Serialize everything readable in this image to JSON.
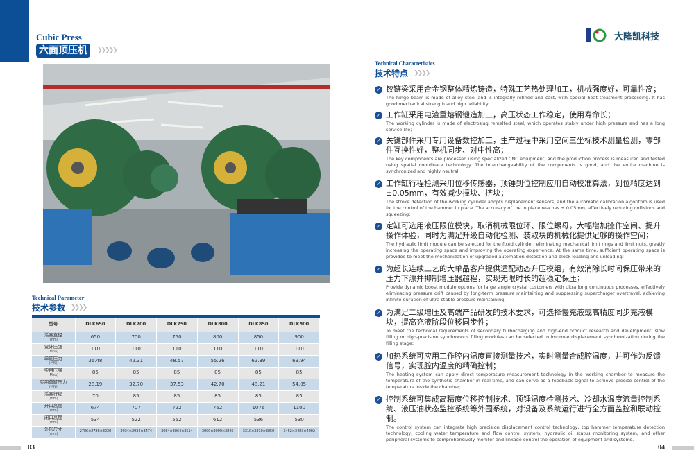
{
  "left_page": {
    "title_en": "Cubic Press",
    "title_cn": "六面顶压机",
    "param_title_en": "Technical Parameter",
    "param_title_cn": "技术参数",
    "page_number": "03",
    "table": {
      "headers": [
        "型号",
        "DLK650",
        "DLK700",
        "DLK750",
        "DLK800",
        "DLK850",
        "DLK900"
      ],
      "rows": [
        {
          "label": "活塞直径",
          "unit": "(mm)",
          "values": [
            "650",
            "700",
            "750",
            "800",
            "850",
            "900"
          ]
        },
        {
          "label": "设计压强",
          "unit": "(Mpa)",
          "values": [
            "110",
            "110",
            "110",
            "110",
            "110",
            "110"
          ]
        },
        {
          "label": "单缸压力",
          "unit": "(MN)",
          "values": [
            "36.48",
            "42.31",
            "48.57",
            "55.26",
            "62.39",
            "69.94"
          ]
        },
        {
          "label": "实用压强",
          "unit": "(Mpa)",
          "values": [
            "85",
            "85",
            "85",
            "85",
            "85",
            "85"
          ]
        },
        {
          "label": "实用单缸压力",
          "unit": "(MN)",
          "values": [
            "28.19",
            "32.70",
            "37.53",
            "42.70",
            "48.21",
            "54.05"
          ]
        },
        {
          "label": "活塞行程",
          "unit": "(mm)",
          "values": [
            "70",
            "85",
            "85",
            "85",
            "85",
            "85"
          ]
        },
        {
          "label": "开口高度",
          "unit": "(mm)",
          "values": [
            "674",
            "707",
            "722",
            "762",
            "1076",
            "1100"
          ]
        },
        {
          "label": "闭口高度",
          "unit": "(mm)",
          "values": [
            "534",
            "522",
            "552",
            "612",
            "536",
            "530"
          ]
        },
        {
          "label": "外形尺寸",
          "unit": "(mm)",
          "values": [
            "2786×2786×3230",
            "2934×2934×3474",
            "3064×3064×3514",
            "3090×3090×3846",
            "3310×3310×3850",
            "3452×3453×4002"
          ]
        }
      ]
    }
  },
  "right_page": {
    "logo_text": "大隆凯科技",
    "char_title_en": "Technical Characteristics",
    "char_title_cn": "技术特点",
    "page_number": "04",
    "items": [
      {
        "cn": "铰链梁采用合金钢整体精炼铸造，特殊工艺热处理加工，机械强度好，可靠性高；",
        "en": "The hinge beam is made of alloy steel and is integrally refined and cast, with special heat treatment processing. It has good mechanical strength and high reliability;"
      },
      {
        "cn": "工作缸采用电渣重熔钢锻造加工，高压状态工作稳定，使用寿命长；",
        "en": "The working cylinder is made of electroslag remelted steel, which operates stably under high pressure and has a long service life;"
      },
      {
        "cn": "关键部件采用专用设备数控加工，生产过程中采用空间三坐标技术测量检测，零部件互换性好，整机同步、对中性高；",
        "en": "The key components are processed using specialized CNC equipment, and the production process is measured and tested using spatial coordinate technology. The interchangeability of the components is good, and the entire machine is synchronized and highly neutral;"
      },
      {
        "cn": "工作缸行程检测采用位移传感器，顶锤到位控制应用自动校准算法，到位精度达到±0.05mm，有效减少撞块、挤块；",
        "en": "The stroke detection of the working cylinder adopts displacement sensors, and the automatic calibration algorithm is used for the control of the hammer in place. The accuracy of the in place reaches ± 0.05mm, effectively reducing collisions and squeezing;"
      },
      {
        "cn": "定缸可选用液压限位模块，取消机械限位环、限位螺母，大幅增加操作空间、提升操作体验，同时为满足升级自动化检测、装取块的机械化提供足够的操作空间；",
        "en": "The hydraulic limit module can be selected for the fixed cylinder, eliminating mechanical limit rings and limit nuts, greatly increasing the operating space and improving the operating experience. At the same time, sufficient operating space is provided to meet the mechanization of upgraded automation detection and block loading and unloading;"
      },
      {
        "cn": "为超长连续工艺的大单晶客户提供适配动态升压模组，有效消除长时间保压带来的压力下漂并抑制增压器超程，实现无限时长的超稳定保压；",
        "en": "Provide dynamic boost module options for large single crystal customers with ultra long continuous processes, effectively eliminating pressure drift caused by long-term pressure maintaining and suppressing supercharger overtravel, achieving infinite duration of ultra stable pressure maintaining;"
      },
      {
        "cn": "为满足二级增压及高端产品研发的技术要求，可选择慢充液或高精度同步充液模块，提高充液阶段位移同步性；",
        "en": "To meet the technical requirements of secondary turbocharging and high-end product research and development, slow filling or high-precision synchronous filling modules can be selected to improve displacement synchronization during the filling stage;"
      },
      {
        "cn": "加热系统可应用工作腔内温度直接测量技术，实时测量合成腔温度，并可作为反馈信号，实现腔内温度的精确控制；",
        "en": "The heating system can apply direct temperature measurement technology in the working chamber to measure the temperature of the synthetic chamber in real-time, and can serve as a feedback signal to achieve precise control of the temperature inside the chamber;"
      },
      {
        "cn": "控制系统可集成高精度位移控制技术、顶锤温度检测技术、冷却水温度流量控制系统、液压油状态监控系统等外围系统，对设备及系统运行进行全方面监控和联动控制。",
        "en": "The control system can integrate high precision displacement control technology, top hammer temperature detection technology, cooling water temperature and flow control system, hydraulic oil status monitoring system, and other peripheral systems to comprehensively monitor and linkage control the operation of equipment and systems."
      }
    ]
  },
  "colors": {
    "brand_blue": "#0c4f96",
    "row_blue": "#c8dae9",
    "row_gray": "#e6e6e6",
    "machine_green": "#2f6b45"
  }
}
